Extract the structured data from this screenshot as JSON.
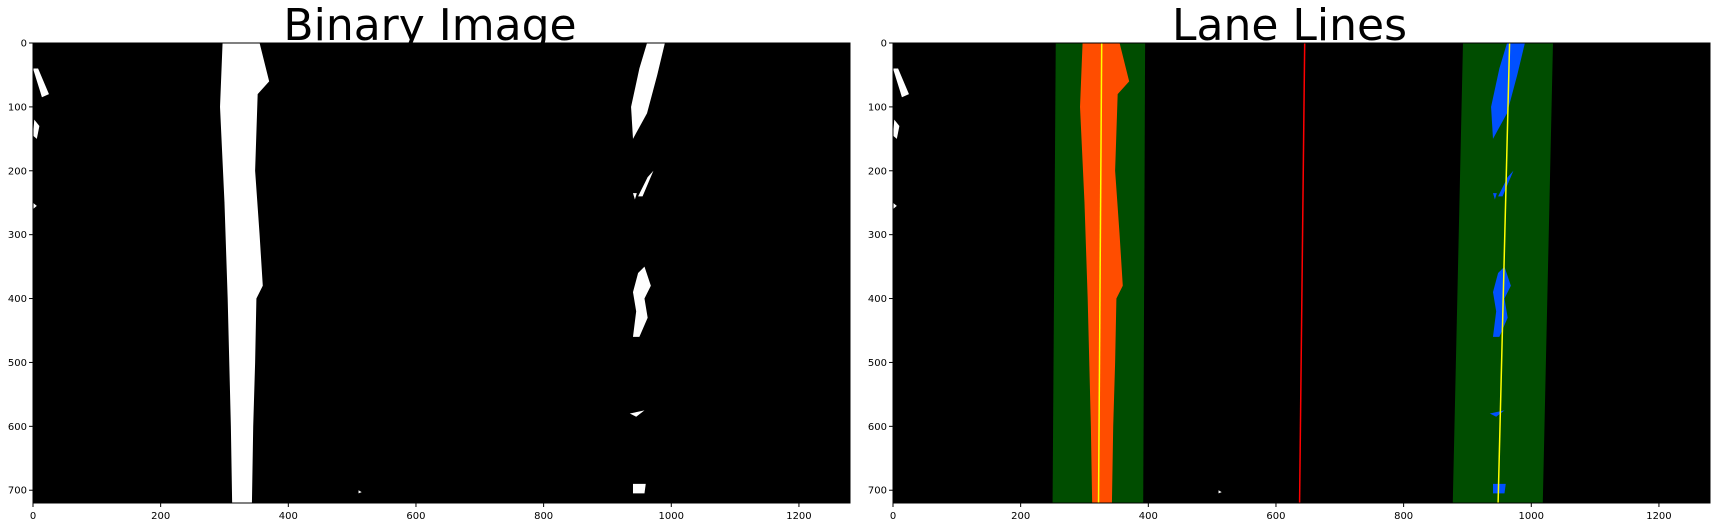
{
  "chart_data": [
    {
      "type": "image",
      "title": "Binary Image",
      "xlim": [
        0,
        1280
      ],
      "ylim": [
        720,
        0
      ],
      "x_ticks": [
        0,
        200,
        400,
        600,
        800,
        1000,
        1200
      ],
      "y_ticks": [
        0,
        100,
        200,
        300,
        400,
        500,
        600,
        700
      ],
      "background_color": "#000000",
      "pixel_color": "#ffffff"
    },
    {
      "type": "image",
      "title": "Lane Lines",
      "xlim": [
        0,
        1280
      ],
      "ylim": [
        720,
        0
      ],
      "x_ticks": [
        0,
        200,
        400,
        600,
        800,
        1000,
        1200
      ],
      "y_ticks": [
        0,
        100,
        200,
        300,
        400,
        500,
        600,
        700
      ],
      "background_color": "#000000",
      "colors": {
        "search_window": "#004d00",
        "left_lane_pixels": "#ff4d00",
        "right_lane_pixels": "#0050ff",
        "fit_line": "#ffff00",
        "center_line": "#ff0000",
        "other_pixels": "#ffffff"
      },
      "left_fit": {
        "x_at_y0": 327,
        "x_at_y720": 322
      },
      "right_fit": {
        "x_at_y0": 966,
        "x_at_y720": 948
      },
      "center_line": {
        "x_at_y0": 645,
        "x_at_y720": 637
      },
      "left_window": {
        "x_min_top": 255,
        "x_max_top": 395,
        "x_min_bottom": 250,
        "x_max_bottom": 392
      },
      "right_window": {
        "x_min_top": 893,
        "x_max_top": 1034,
        "x_min_bottom": 877,
        "x_max_bottom": 1018
      }
    }
  ]
}
